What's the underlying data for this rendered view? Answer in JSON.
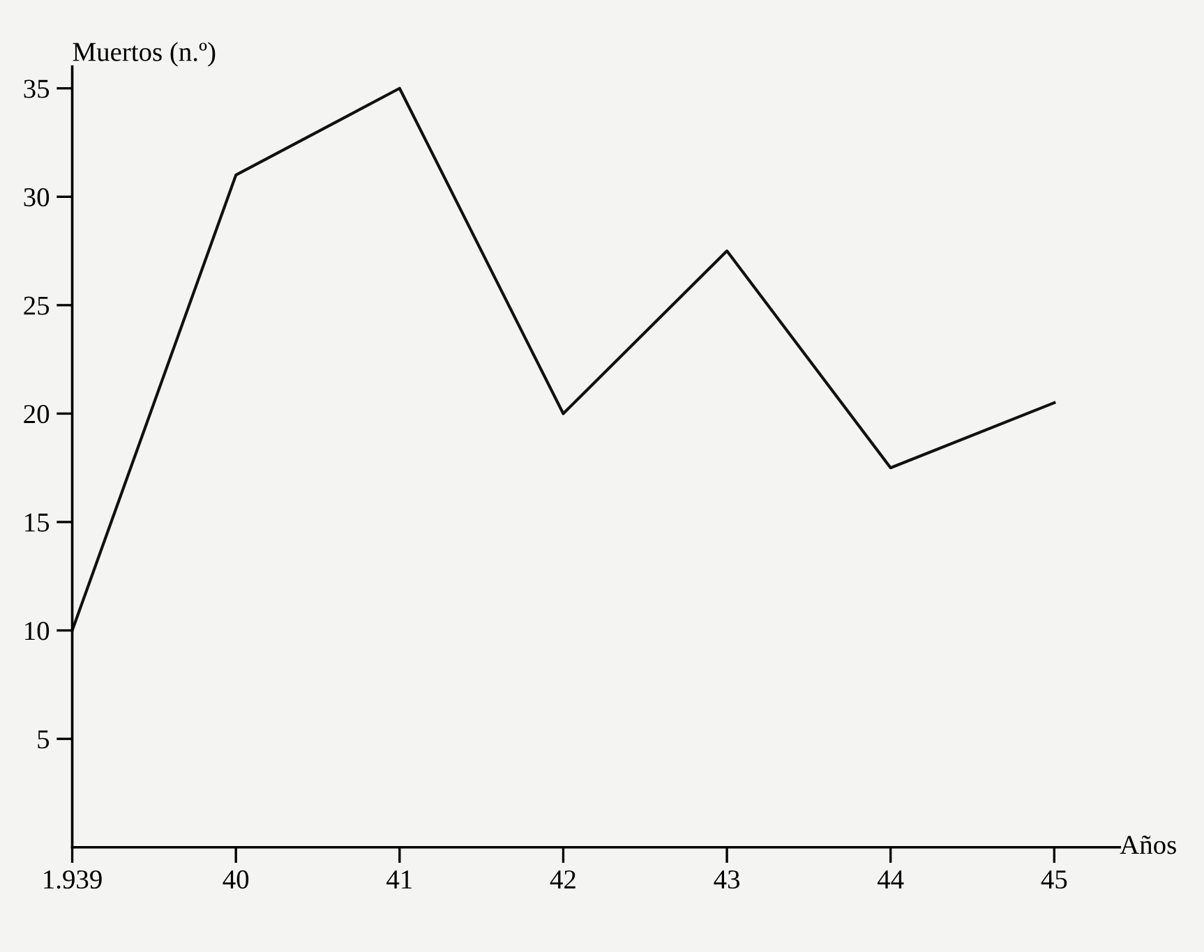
{
  "chart_data": {
    "type": "line",
    "ylabel": "Muertos (n.º)",
    "xlabel": "Años",
    "categories": [
      "1.939",
      "40",
      "41",
      "42",
      "43",
      "44",
      "45"
    ],
    "series": [
      {
        "color": "#111111",
        "values": [
          10,
          31,
          35,
          20,
          27.5,
          17.5,
          20.5
        ]
      }
    ],
    "ylim": [
      0,
      36
    ],
    "yticks": [
      5,
      10,
      15,
      20,
      25,
      30,
      35
    ],
    "grid": false,
    "legend": false,
    "marker": "none",
    "line_style": "solid"
  }
}
